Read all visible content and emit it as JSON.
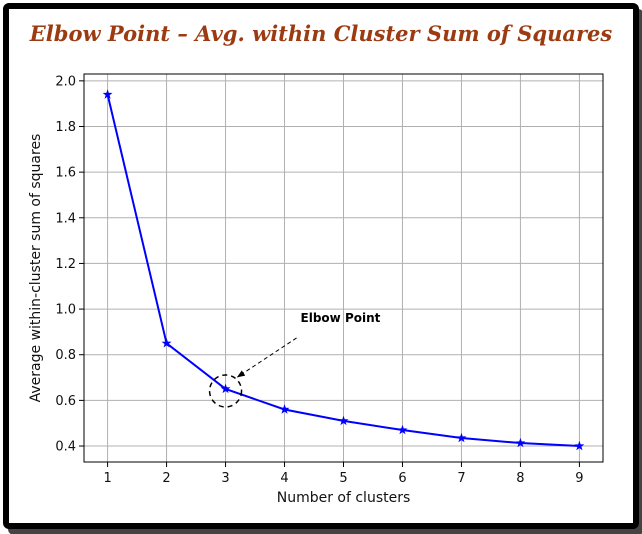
{
  "title": "Elbow Point – Avg. within Cluster Sum of Squares",
  "colors": {
    "title": "#9c3b12",
    "series": "#0000ff",
    "grid": "#b0b0b0"
  },
  "chart_data": {
    "type": "line",
    "title": "Elbow Point – Avg. within Cluster Sum of Squares",
    "xlabel": "Number of clusters",
    "ylabel": "Average within-cluster sum of squares",
    "x": [
      1,
      2,
      3,
      4,
      5,
      6,
      7,
      8,
      9
    ],
    "xticks": [
      "1",
      "2",
      "3",
      "4",
      "5",
      "6",
      "7",
      "8",
      "9"
    ],
    "yticks": [
      "0.4",
      "0.6",
      "0.8",
      "1.0",
      "1.2",
      "1.4",
      "1.6",
      "1.8",
      "2.0"
    ],
    "ytick_values": [
      0.4,
      0.6,
      0.8,
      1.0,
      1.2,
      1.4,
      1.6,
      1.8,
      2.0
    ],
    "series": [
      {
        "values": [
          1.94,
          0.85,
          0.65,
          0.56,
          0.51,
          0.47,
          0.435,
          0.413,
          0.4
        ],
        "marker": "star",
        "color": "#0000ff"
      }
    ],
    "xlim": [
      0.6,
      9.4
    ],
    "ylim": [
      0.33,
      2.03
    ],
    "grid": true,
    "annotations": [
      {
        "text": "Elbow Point",
        "x": 3,
        "y": 0.65,
        "style": "dashed circle with arrow"
      }
    ]
  }
}
